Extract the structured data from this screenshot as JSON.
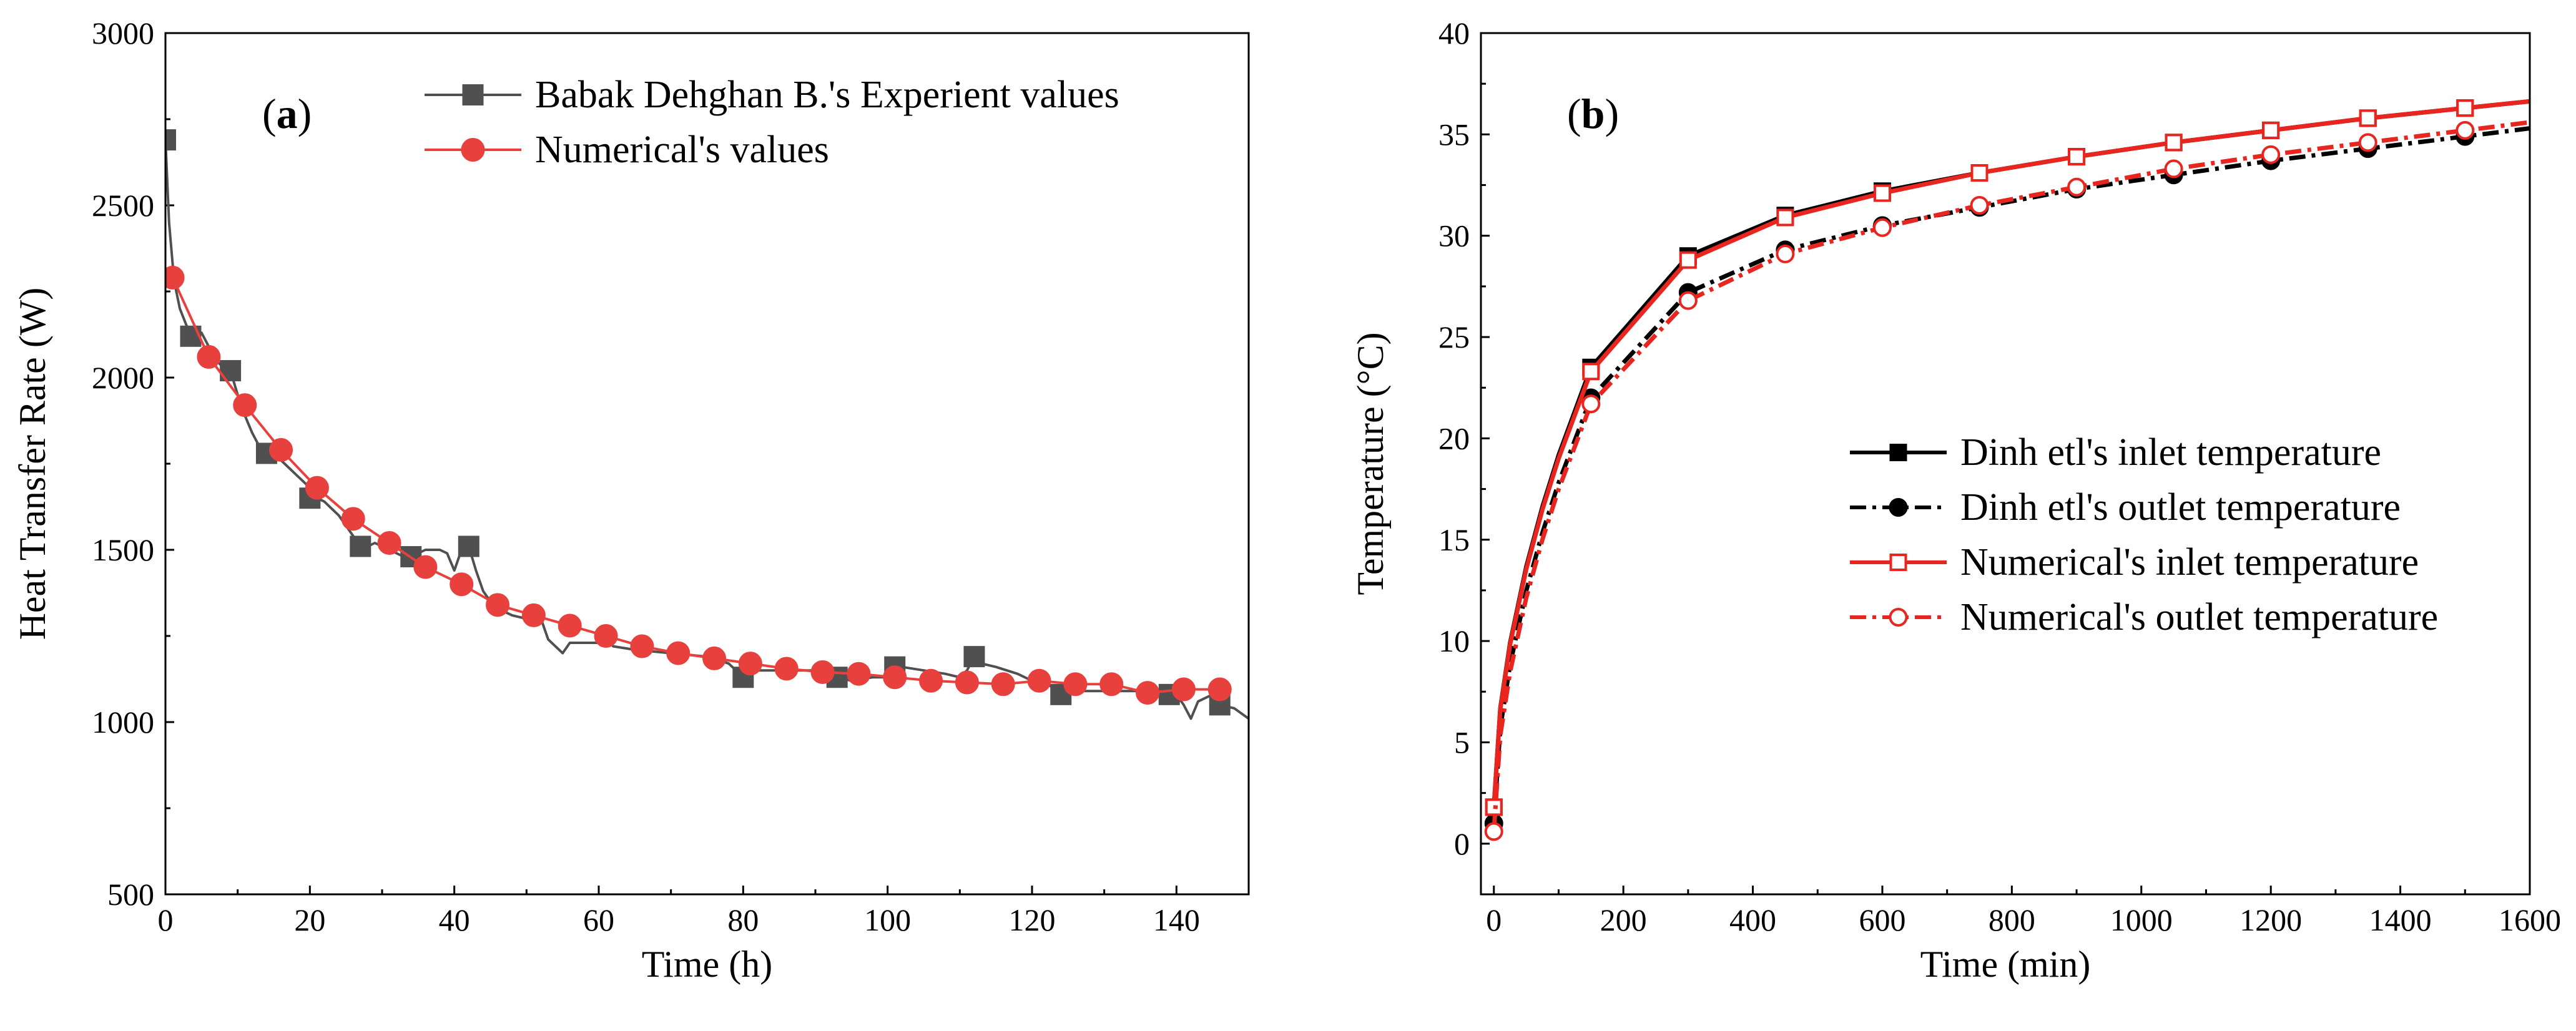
{
  "chart_data": [
    {
      "type": "line",
      "panel_label": "(a)",
      "xlabel": "Time (h)",
      "ylabel": "Heat Transfer Rate (W)",
      "xlim": [
        0,
        150
      ],
      "ylim": [
        500,
        3000
      ],
      "xticks": [
        0,
        20,
        40,
        60,
        80,
        100,
        120,
        140
      ],
      "yticks": [
        500,
        1000,
        1500,
        2000,
        2500,
        3000
      ],
      "legend_position": "top-right",
      "series": [
        {
          "name": "Babak Dehghan B.'s Experient values",
          "color": "#505050",
          "marker": "square-filled",
          "line_x": [
            0,
            0.5,
            1.2,
            2,
            3.5,
            5,
            6,
            7,
            8,
            9,
            10,
            11,
            12,
            13,
            14,
            15,
            16,
            17,
            18,
            19,
            20,
            21,
            22,
            23,
            24,
            25,
            26,
            27,
            28,
            29,
            30,
            31,
            32,
            33,
            34,
            35,
            36,
            37,
            38,
            39,
            40,
            41,
            42,
            43,
            44,
            45,
            46,
            47,
            48,
            50,
            52,
            53,
            54,
            55,
            56,
            58,
            60,
            61,
            62,
            65,
            70,
            75,
            78,
            79,
            80,
            81,
            82,
            85,
            90,
            92,
            93,
            95,
            98,
            100,
            101,
            102,
            105,
            108,
            110,
            111,
            112,
            113,
            115,
            118,
            120,
            122,
            124,
            125,
            130,
            135,
            138,
            139,
            140,
            141,
            142,
            143,
            145,
            146,
            148,
            150
          ],
          "line_y": [
            2690,
            2450,
            2280,
            2200,
            2120,
            2130,
            2090,
            2050,
            2030,
            2020,
            1950,
            1890,
            1840,
            1800,
            1790,
            1780,
            1760,
            1740,
            1720,
            1700,
            1680,
            1650,
            1640,
            1620,
            1600,
            1570,
            1540,
            1510,
            1510,
            1520,
            1510,
            1500,
            1490,
            1480,
            1480,
            1490,
            1500,
            1500,
            1500,
            1490,
            1440,
            1500,
            1510,
            1440,
            1380,
            1350,
            1330,
            1320,
            1310,
            1300,
            1300,
            1240,
            1220,
            1200,
            1230,
            1230,
            1230,
            1240,
            1220,
            1210,
            1200,
            1190,
            1170,
            1150,
            1130,
            1140,
            1150,
            1150,
            1150,
            1140,
            1130,
            1120,
            1130,
            1130,
            1150,
            1160,
            1150,
            1140,
            1130,
            1150,
            1190,
            1170,
            1160,
            1140,
            1120,
            1110,
            1090,
            1090,
            1090,
            1090,
            1080,
            1070,
            1080,
            1050,
            1010,
            1060,
            1080,
            1050,
            1040,
            1010
          ],
          "x": [
            0,
            3.5,
            9,
            14,
            20,
            27,
            34,
            42,
            80,
            93,
            101,
            112,
            124,
            139,
            146
          ],
          "y": [
            2690,
            2120,
            2020,
            1780,
            1650,
            1510,
            1480,
            1510,
            1130,
            1130,
            1160,
            1190,
            1080,
            1080,
            1050
          ]
        },
        {
          "name": "Numerical's values",
          "color": "#e8403c",
          "marker": "circle-filled",
          "x": [
            1,
            6,
            11,
            16,
            21,
            26,
            31,
            36,
            41,
            46,
            51,
            56,
            61,
            66,
            71,
            76,
            81,
            86,
            91,
            96,
            101,
            106,
            111,
            116,
            121,
            126,
            131,
            136,
            141,
            146
          ],
          "y": [
            2290,
            2060,
            1920,
            1790,
            1680,
            1590,
            1520,
            1450,
            1400,
            1340,
            1310,
            1280,
            1250,
            1220,
            1200,
            1185,
            1170,
            1155,
            1145,
            1140,
            1130,
            1120,
            1115,
            1110,
            1120,
            1110,
            1110,
            1085,
            1095,
            1095
          ]
        }
      ]
    },
    {
      "type": "line",
      "panel_label": "(b)",
      "xlabel": "Time (min)",
      "ylabel": "Temperature (°C)",
      "xlim": [
        -20,
        1600
      ],
      "ylim": [
        -2.5,
        40
      ],
      "xticks": [
        0,
        200,
        400,
        600,
        800,
        1000,
        1200,
        1400,
        1600
      ],
      "yticks": [
        0,
        5,
        10,
        15,
        20,
        25,
        30,
        35,
        40
      ],
      "legend_position": "center-right",
      "series": [
        {
          "name": "Dinh etl's inlet temperature",
          "color": "#000000",
          "line_style": "solid",
          "marker": "square-filled",
          "x": [
            0,
            150,
            300,
            450,
            600,
            750,
            900,
            1050,
            1200,
            1350,
            1500
          ],
          "y": [
            1.8,
            23.5,
            29.0,
            31.0,
            32.2,
            33.1,
            33.9,
            34.6,
            35.2,
            35.8,
            36.3
          ]
        },
        {
          "name": "Dinh etl's outlet temperature",
          "color": "#000000",
          "line_style": "dash-dot",
          "marker": "circle-filled",
          "x": [
            0,
            150,
            300,
            450,
            600,
            750,
            900,
            1050,
            1200,
            1350,
            1500
          ],
          "y": [
            1.0,
            22.0,
            27.2,
            29.3,
            30.5,
            31.4,
            32.3,
            33.0,
            33.7,
            34.3,
            34.9
          ]
        },
        {
          "name": "Numerical's inlet temperature",
          "color": "#e8251e",
          "line_style": "solid",
          "marker": "square-open",
          "x": [
            0,
            150,
            300,
            450,
            600,
            750,
            900,
            1050,
            1200,
            1350,
            1500
          ],
          "y": [
            1.8,
            23.3,
            28.8,
            30.9,
            32.1,
            33.1,
            33.9,
            34.6,
            35.2,
            35.8,
            36.3
          ]
        },
        {
          "name": "Numerical's outlet temperature",
          "color": "#e8251e",
          "line_style": "dash-dot",
          "marker": "circle-open",
          "x": [
            0,
            150,
            300,
            450,
            600,
            750,
            900,
            1050,
            1200,
            1350,
            1500
          ],
          "y": [
            0.6,
            21.7,
            26.8,
            29.1,
            30.4,
            31.5,
            32.4,
            33.3,
            34.0,
            34.6,
            35.2
          ]
        }
      ]
    }
  ]
}
